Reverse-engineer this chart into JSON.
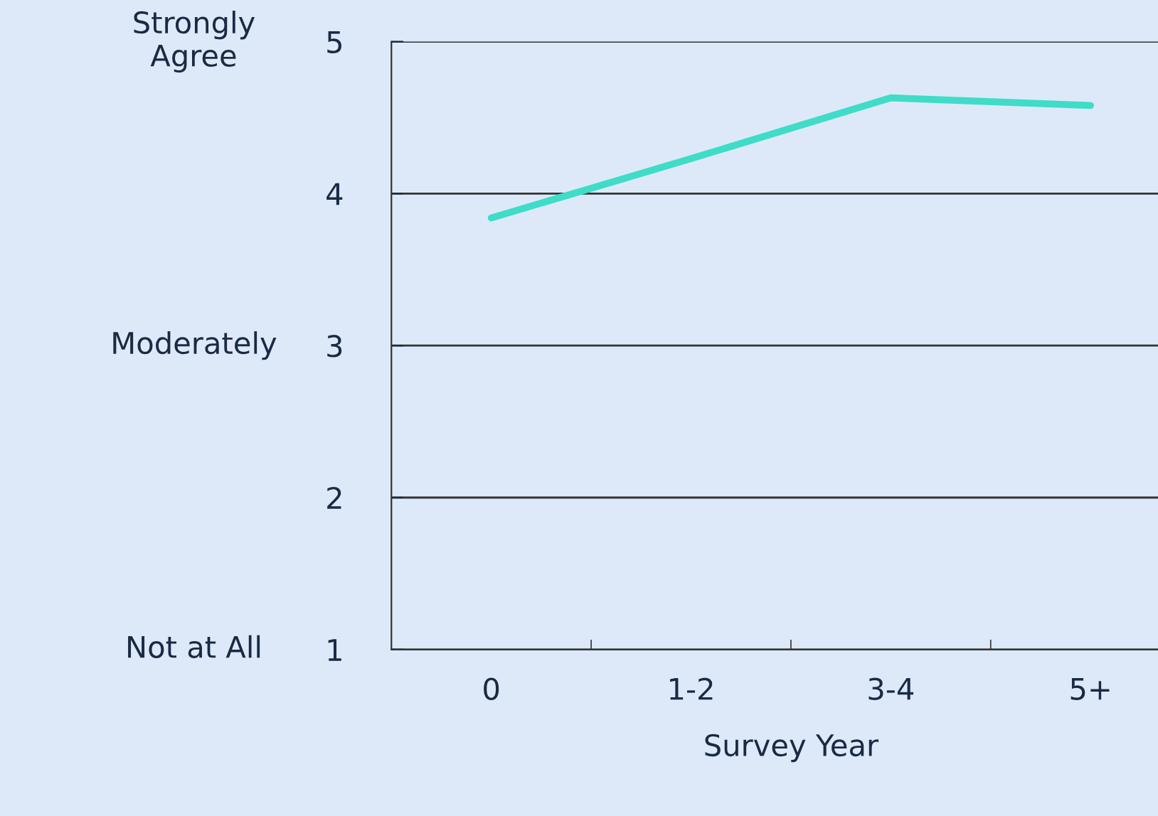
{
  "chart_data": {
    "type": "line",
    "xlabel": "Survey Year",
    "categories": [
      "0",
      "1-2",
      "3-4",
      "5+"
    ],
    "series": [
      {
        "color": "#3fdcc8",
        "values": [
          3.84,
          4.23,
          4.63,
          4.58
        ]
      }
    ],
    "ylim": [
      1,
      5
    ],
    "yticks": [
      1,
      2,
      3,
      4,
      5
    ],
    "grid": "y",
    "marker": "none",
    "line_style": "solid",
    "annotations": [
      "Strongly\nAgree",
      "Moderately",
      "Not at All"
    ]
  }
}
